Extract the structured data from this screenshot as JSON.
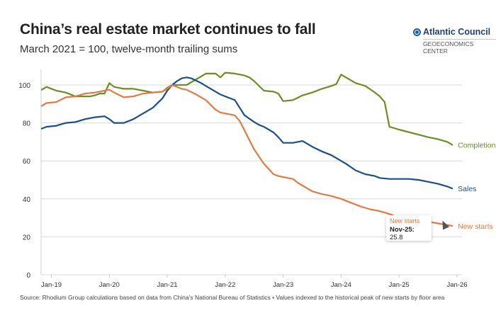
{
  "header": {
    "title": "China’s real estate market continues to fall",
    "subtitle": "March 2021 = 100, twelve-month trailing sums"
  },
  "logo": {
    "name": "Atlantic Council",
    "sub": "GEOECONOMICS CENTER",
    "icon": "globe-icon"
  },
  "footer": {
    "source": "Source: Rhodium Group calculations based on data from China’s National Bureau of Statistics • Values indexed to the historical peak of new starts by floor area"
  },
  "tooltip": {
    "series": "New starts",
    "label": "Nov-25:",
    "value": "25.8"
  },
  "colors": {
    "completions": "#6b8e23",
    "sales": "#1a4f8a",
    "new_starts": "#e07b45",
    "grid": "#d9d9d9"
  },
  "chart_data": {
    "type": "line",
    "title": "China’s real estate market continues to fall",
    "subtitle": "March 2021 = 100, twelve-month trailing sums",
    "xlabel": "",
    "ylabel": "",
    "x_unit": "months since Jan-19",
    "xlim": [
      -2,
      84
    ],
    "ylim": [
      0,
      100
    ],
    "yticks": [
      0,
      20,
      40,
      60,
      80,
      100
    ],
    "xtick_labels": [
      "Jan-19",
      "Jan-20",
      "Jan-21",
      "Jan-22",
      "Jan-23",
      "Jan-24",
      "Jan-25",
      "Jan-26"
    ],
    "xtick_months": [
      0,
      12,
      24,
      36,
      48,
      60,
      72,
      84
    ],
    "grid": true,
    "legend": "inline-end-labels",
    "series": [
      {
        "name": "Completions",
        "key": "completions",
        "x": [
          -2,
          -1,
          1,
          3,
          5,
          6,
          8,
          9,
          10,
          11,
          12,
          13,
          15,
          17,
          19,
          21,
          23,
          24,
          25,
          26,
          28,
          30,
          32,
          34,
          35,
          36,
          38,
          40,
          41,
          42,
          44,
          46,
          47,
          48,
          50,
          52,
          54,
          56,
          58,
          59,
          60,
          61,
          63,
          65,
          67,
          68,
          69,
          70,
          72,
          75,
          78,
          80,
          82,
          83
        ],
        "values": [
          97.5,
          99,
          97,
          96,
          94,
          94,
          94,
          94.5,
          95.5,
          95.5,
          101,
          99,
          98,
          98,
          97,
          96,
          96.5,
          98.5,
          100,
          100,
          100,
          103,
          106,
          106,
          104,
          106.5,
          106,
          105,
          104,
          102,
          97,
          96.5,
          95.5,
          91.5,
          92,
          94.5,
          96,
          98,
          99.5,
          100.5,
          105.5,
          104,
          101,
          99.5,
          96,
          94,
          91,
          78,
          76.5,
          74.5,
          72.5,
          71.5,
          70,
          68.5
        ]
      },
      {
        "name": "Sales",
        "key": "sales",
        "x": [
          -2,
          -1,
          1,
          3,
          5,
          7,
          9,
          11,
          12,
          13,
          15,
          17,
          19,
          21,
          23,
          24,
          25,
          26,
          27,
          28,
          29,
          31,
          33,
          35,
          36,
          38,
          39,
          40,
          42,
          43,
          44,
          46,
          47,
          48,
          50,
          51,
          52,
          54,
          56,
          58,
          60,
          61,
          63,
          65,
          67,
          68,
          70,
          72,
          74,
          76,
          78,
          80,
          82,
          83
        ],
        "values": [
          77,
          78,
          78.5,
          80,
          80.5,
          82,
          83,
          83.5,
          82,
          80,
          80,
          82,
          85,
          88,
          93,
          97,
          100,
          102,
          103.5,
          104,
          103.5,
          101,
          98,
          95,
          94,
          92,
          88,
          84,
          80.5,
          79,
          78,
          75,
          72.5,
          69.5,
          69.5,
          70,
          70.5,
          67.5,
          65,
          63,
          60,
          58.5,
          55,
          53,
          52,
          51,
          50.5,
          50.5,
          50.5,
          50,
          49,
          48,
          46.5,
          45.5
        ]
      },
      {
        "name": "New starts",
        "key": "new_starts",
        "x": [
          -2,
          -1,
          1,
          3,
          5,
          7,
          9,
          11,
          12,
          13,
          15,
          17,
          19,
          21,
          23,
          24,
          25,
          26,
          27,
          28,
          30,
          32,
          34,
          35,
          36,
          38,
          39,
          40,
          41,
          42,
          44,
          46,
          47,
          48,
          50,
          51,
          52,
          54,
          56,
          58,
          60,
          62,
          64,
          66,
          68,
          70,
          71,
          83
        ],
        "values": [
          89,
          90.5,
          91,
          93.5,
          94,
          95.5,
          96,
          97,
          97.5,
          96,
          93.5,
          94,
          95.5,
          96,
          96.5,
          98,
          100,
          99,
          98,
          97.5,
          95,
          92,
          87,
          85.5,
          85,
          84,
          81,
          76,
          71,
          66,
          58.5,
          53,
          52,
          51.5,
          50.5,
          48.5,
          47,
          44,
          42.5,
          41.5,
          40,
          38,
          36,
          34.5,
          33.5,
          32,
          31,
          25.8
        ]
      }
    ],
    "annotations": [
      {
        "text": "Completions",
        "series": "Completions",
        "position": "end"
      },
      {
        "text": "Sales",
        "series": "Sales",
        "position": "end"
      },
      {
        "text": "New starts",
        "series": "New starts",
        "position": "end"
      },
      {
        "text": "New starts Nov-25: 25.8",
        "type": "tooltip"
      }
    ]
  }
}
